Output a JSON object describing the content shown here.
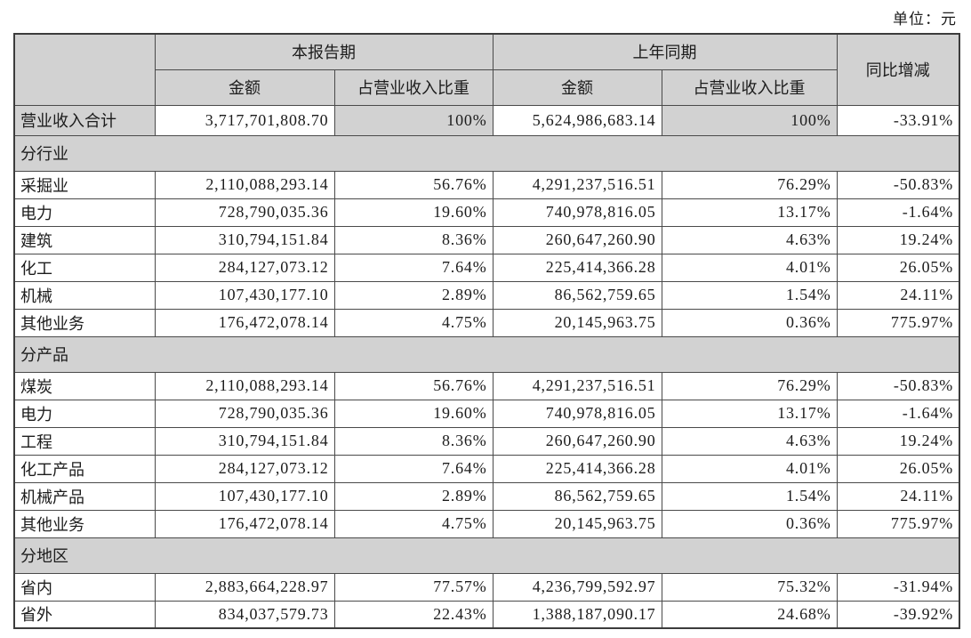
{
  "unit_label": "单位：元",
  "accent_colors": {
    "header_fill": "#d2d2d2",
    "border": "#4a4a4a",
    "background": "#ffffff"
  },
  "table": {
    "header": {
      "current_period": "本报告期",
      "prior_period": "上年同期",
      "yoy": "同比增减",
      "amount": "金额",
      "pct_of_revenue": "占营业收入比重"
    },
    "total_row": {
      "label": "营业收入合计",
      "cur_amount": "3,717,701,808.70",
      "cur_pct": "100%",
      "prior_amount": "5,624,986,683.14",
      "prior_pct": "100%",
      "yoy": "-33.91%"
    },
    "sections": [
      {
        "title": "分行业",
        "rows": [
          {
            "label": "采掘业",
            "cur_amount": "2,110,088,293.14",
            "cur_pct": "56.76%",
            "prior_amount": "4,291,237,516.51",
            "prior_pct": "76.29%",
            "yoy": "-50.83%"
          },
          {
            "label": "电力",
            "cur_amount": "728,790,035.36",
            "cur_pct": "19.60%",
            "prior_amount": "740,978,816.05",
            "prior_pct": "13.17%",
            "yoy": "-1.64%"
          },
          {
            "label": "建筑",
            "cur_amount": "310,794,151.84",
            "cur_pct": "8.36%",
            "prior_amount": "260,647,260.90",
            "prior_pct": "4.63%",
            "yoy": "19.24%"
          },
          {
            "label": "化工",
            "cur_amount": "284,127,073.12",
            "cur_pct": "7.64%",
            "prior_amount": "225,414,366.28",
            "prior_pct": "4.01%",
            "yoy": "26.05%"
          },
          {
            "label": "机械",
            "cur_amount": "107,430,177.10",
            "cur_pct": "2.89%",
            "prior_amount": "86,562,759.65",
            "prior_pct": "1.54%",
            "yoy": "24.11%"
          },
          {
            "label": "其他业务",
            "cur_amount": "176,472,078.14",
            "cur_pct": "4.75%",
            "prior_amount": "20,145,963.75",
            "prior_pct": "0.36%",
            "yoy": "775.97%"
          }
        ]
      },
      {
        "title": "分产品",
        "rows": [
          {
            "label": "煤炭",
            "cur_amount": "2,110,088,293.14",
            "cur_pct": "56.76%",
            "prior_amount": "4,291,237,516.51",
            "prior_pct": "76.29%",
            "yoy": "-50.83%"
          },
          {
            "label": "电力",
            "cur_amount": "728,790,035.36",
            "cur_pct": "19.60%",
            "prior_amount": "740,978,816.05",
            "prior_pct": "13.17%",
            "yoy": "-1.64%"
          },
          {
            "label": "工程",
            "cur_amount": "310,794,151.84",
            "cur_pct": "8.36%",
            "prior_amount": "260,647,260.90",
            "prior_pct": "4.63%",
            "yoy": "19.24%"
          },
          {
            "label": "化工产品",
            "cur_amount": "284,127,073.12",
            "cur_pct": "7.64%",
            "prior_amount": "225,414,366.28",
            "prior_pct": "4.01%",
            "yoy": "26.05%"
          },
          {
            "label": "机械产品",
            "cur_amount": "107,430,177.10",
            "cur_pct": "2.89%",
            "prior_amount": "86,562,759.65",
            "prior_pct": "1.54%",
            "yoy": "24.11%"
          },
          {
            "label": "其他业务",
            "cur_amount": "176,472,078.14",
            "cur_pct": "4.75%",
            "prior_amount": "20,145,963.75",
            "prior_pct": "0.36%",
            "yoy": "775.97%"
          }
        ]
      },
      {
        "title": "分地区",
        "rows": [
          {
            "label": "省内",
            "cur_amount": "2,883,664,228.97",
            "cur_pct": "77.57%",
            "prior_amount": "4,236,799,592.97",
            "prior_pct": "75.32%",
            "yoy": "-31.94%"
          },
          {
            "label": "省外",
            "cur_amount": "834,037,579.73",
            "cur_pct": "22.43%",
            "prior_amount": "1,388,187,090.17",
            "prior_pct": "24.68%",
            "yoy": "-39.92%"
          }
        ]
      }
    ]
  }
}
